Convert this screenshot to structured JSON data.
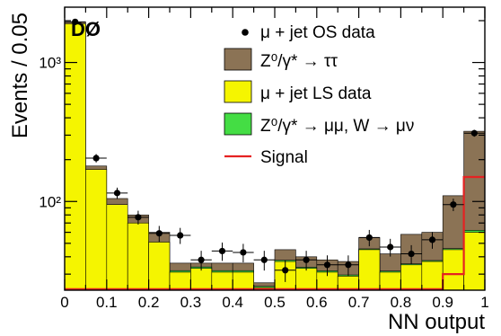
{
  "chart_data": {
    "type": "bar",
    "experiment_label": "DØ",
    "xlabel": "NN output",
    "ylabel": "Events / 0.05",
    "xlim": [
      0,
      1
    ],
    "ylim": [
      23,
      2500
    ],
    "yscale": "log",
    "x_ticks": [
      "0",
      "0.1",
      "0.2",
      "0.3",
      "0.4",
      "0.5",
      "0.6",
      "0.7",
      "0.8",
      "0.9",
      "1"
    ],
    "y_ticks": [
      "10²",
      "10³"
    ],
    "bin_edges": [
      0,
      0.05,
      0.1,
      0.15,
      0.2,
      0.25,
      0.3,
      0.35,
      0.4,
      0.45,
      0.5,
      0.55,
      0.6,
      0.65,
      0.7,
      0.75,
      0.8,
      0.85,
      0.9,
      0.95,
      1.0
    ],
    "legend_position": "top-right",
    "series": [
      {
        "name": "μ + jet OS data",
        "kind": "points",
        "color": "#000000",
        "values": [
          1960,
          205,
          115,
          77,
          59,
          57,
          38,
          44,
          43,
          38,
          32,
          38,
          35,
          35,
          55,
          47,
          42,
          53,
          95,
          310
        ]
      },
      {
        "name": "Z⁰/γ* → ττ",
        "kind": "stack",
        "color": "#8B7355",
        "values": [
          1960,
          180,
          105,
          80,
          60,
          36,
          36,
          36,
          36,
          26,
          45,
          40,
          38,
          37,
          55,
          42,
          58,
          60,
          110,
          320
        ]
      },
      {
        "name": "μ + jet LS data",
        "kind": "stack",
        "color": "#F5F500",
        "values": [
          1900,
          170,
          95,
          70,
          51,
          31,
          33,
          31,
          31,
          24,
          37,
          33,
          31,
          29,
          45,
          31,
          35,
          37,
          45,
          60
        ]
      },
      {
        "name": "Z⁰/γ* → μμ, W → μν",
        "kind": "stack",
        "color": "#44DD44",
        "values": [
          null,
          null,
          null,
          null,
          null,
          31.8,
          33.8,
          31.8,
          31.8,
          24.5,
          37.8,
          33.6,
          31.7,
          29.6,
          45.6,
          31.6,
          35.6,
          37.6,
          45.8,
          62
        ]
      },
      {
        "name": "Signal",
        "kind": "line",
        "color": "#E52222",
        "values": [
          23.4,
          23.4,
          23.4,
          23.4,
          23.4,
          23.4,
          23.4,
          23.4,
          23.4,
          23.4,
          23.4,
          23.4,
          23.4,
          23.4,
          23.4,
          23.4,
          23.4,
          23.4,
          30,
          150
        ]
      }
    ]
  }
}
